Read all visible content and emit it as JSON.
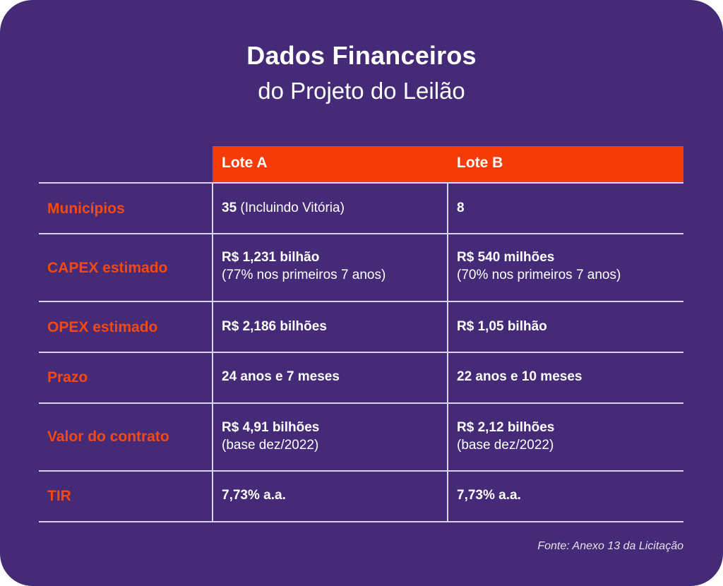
{
  "title": "Dados Financeiros",
  "subtitle": "do Projeto do Leilão",
  "columns": [
    "Lote A",
    "Lote B"
  ],
  "rows": [
    {
      "label": "Municípios",
      "a": {
        "bold": "35",
        "normal": " (Incluindo Vitória)"
      },
      "b": {
        "bold": "8"
      }
    },
    {
      "label": "CAPEX estimado",
      "a": {
        "bold": "R$ 1,231 bilhão",
        "line2": "(77% nos primeiros 7 anos)"
      },
      "b": {
        "bold": "R$ 540 milhões",
        "line2": "(70% nos primeiros 7 anos)"
      }
    },
    {
      "label": "OPEX estimado",
      "a": {
        "bold": "R$ 2,186 bilhões"
      },
      "b": {
        "bold": "R$ 1,05 bilhão"
      }
    },
    {
      "label": "Prazo",
      "a": {
        "bold": "24 anos e 7 meses"
      },
      "b": {
        "bold": "22 anos e 10 meses"
      }
    },
    {
      "label": "Valor do contrato",
      "a": {
        "bold": "R$ 4,91 bilhões",
        "line2": "(base dez/2022)"
      },
      "b": {
        "bold": "R$ 2,12 bilhões",
        "line2": "(base dez/2022)"
      }
    },
    {
      "label": "TIR",
      "a": {
        "bold": "7,73% a.a."
      },
      "b": {
        "bold": "7,73% a.a."
      }
    }
  ],
  "source": "Fonte: Anexo 13 da Licitação",
  "colors": {
    "background": "#452a78",
    "accent": "#f63b08",
    "label": "#f7490f"
  }
}
